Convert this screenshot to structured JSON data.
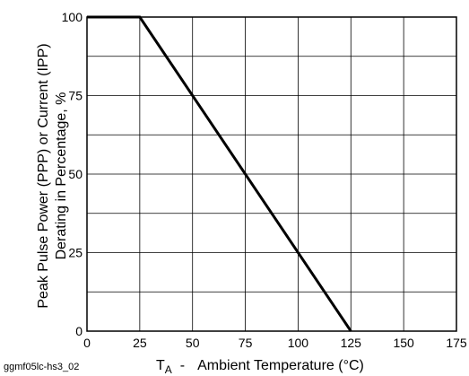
{
  "chart_data": {
    "type": "line",
    "title": "",
    "xlabel": {
      "symbol": "T",
      "subscript": "A",
      "separator": "-",
      "text": "Ambient Temperature (°C)"
    },
    "ylabel": {
      "line1": "Peak Pulse Power (PPP) or Current (IPP)",
      "line2": "Derating in Percentage, %"
    },
    "figure_code": "ggmf05lc-hs3_02",
    "xlim": [
      0,
      175
    ],
    "ylim": [
      0,
      100
    ],
    "x_ticks": [
      0,
      25,
      50,
      75,
      100,
      125,
      150,
      175
    ],
    "y_ticks": [
      0,
      25,
      50,
      75,
      100
    ],
    "x_gridlines": [
      0,
      25,
      50,
      75,
      100,
      125,
      150,
      175
    ],
    "y_gridlines": [
      0,
      12.5,
      25,
      37.5,
      50,
      62.5,
      75,
      87.5,
      100
    ],
    "grid": true,
    "legend": "none",
    "series": [
      {
        "color": "#000000",
        "x": [
          0,
          25,
          125
        ],
        "y": [
          100,
          100,
          0
        ]
      }
    ]
  }
}
